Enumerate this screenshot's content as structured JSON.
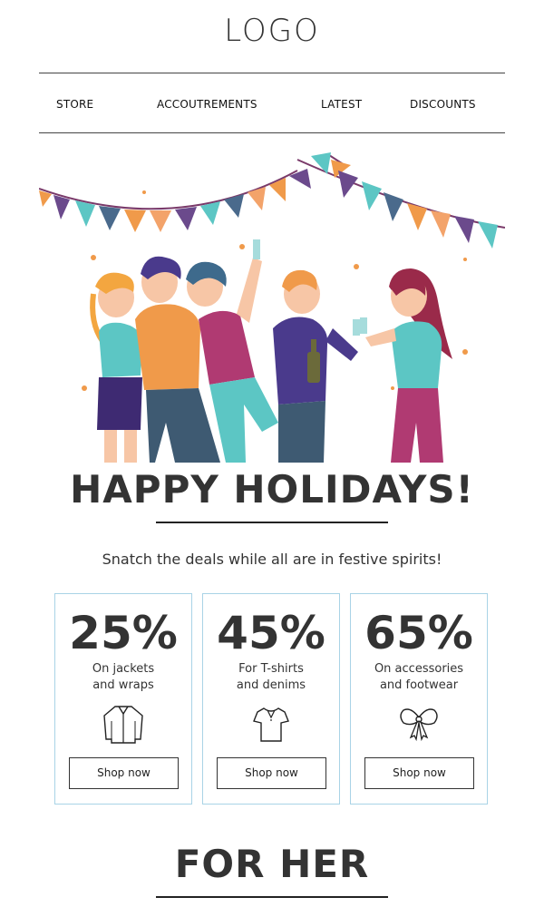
{
  "header": {
    "logo": "LOGO"
  },
  "nav": {
    "items": [
      {
        "label": "STORE"
      },
      {
        "label": "ACCOUTREMENTS"
      },
      {
        "label": "LATEST"
      },
      {
        "label": "DISCOUNTS"
      }
    ]
  },
  "hero": {
    "headline": "HAPPY HOLIDAYS!",
    "subtitle": "Snatch the deals while all are in festive spirits!"
  },
  "offers": [
    {
      "percent": "25%",
      "line1": "On jackets",
      "line2": "and wraps",
      "icon": "jacket-icon",
      "cta": "Shop now"
    },
    {
      "percent": "45%",
      "line1": "For T-shirts",
      "line2": "and denims",
      "icon": "tshirt-icon",
      "cta": "Shop now"
    },
    {
      "percent": "65%",
      "line1": "On accessories",
      "line2": "and footwear",
      "icon": "bow-icon",
      "cta": "Shop now"
    }
  ],
  "section2": {
    "title": "FOR HER"
  },
  "colors": {
    "card_border": "#a9d3e6",
    "text": "#333333",
    "teal": "#5cc6c4",
    "orange": "#f09a4a",
    "purple": "#6b4a8c"
  }
}
